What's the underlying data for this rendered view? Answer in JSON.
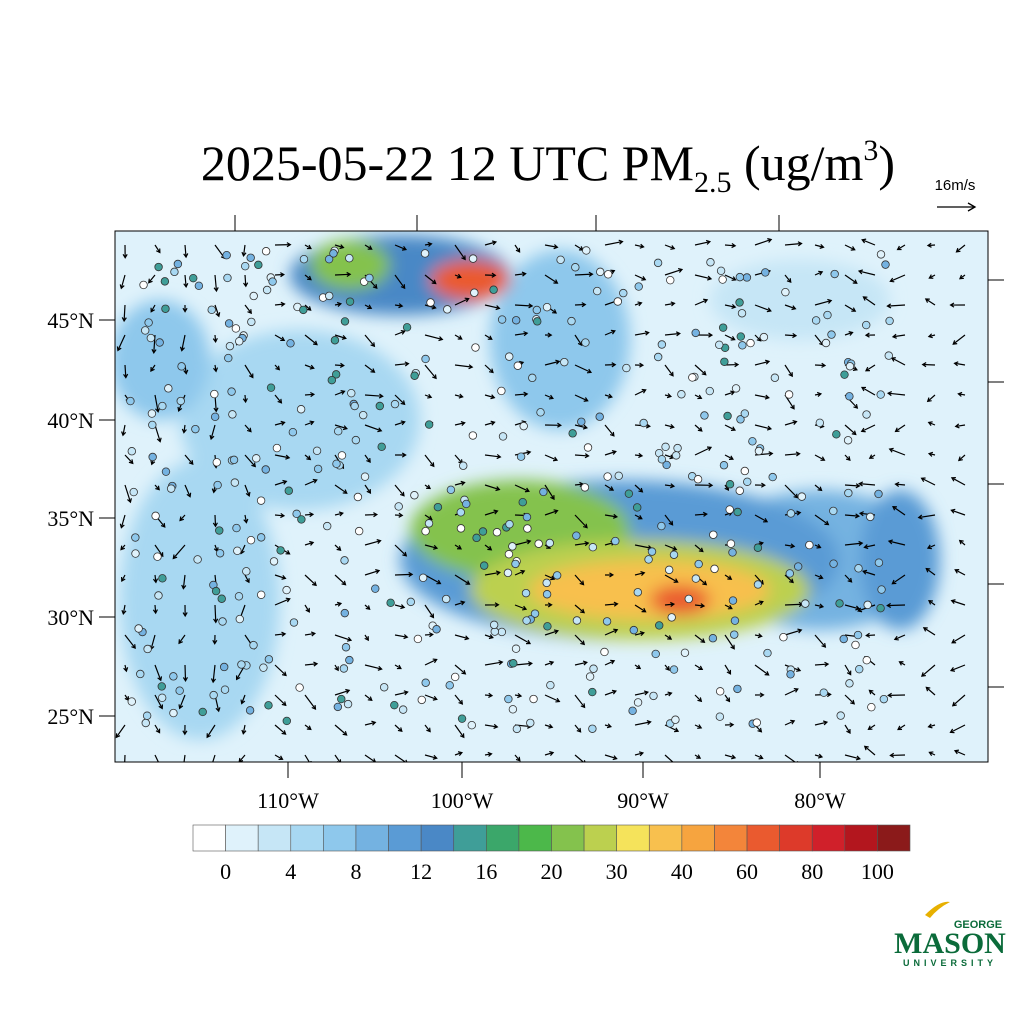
{
  "title": {
    "main": "2025-05-22 12 UTC PM",
    "subscript": "2.5",
    "unit_open": " (ug/m",
    "superscript": "3",
    "unit_close": ")"
  },
  "wind_reference": "16m/s",
  "lat_labels": [
    "45°N",
    "40°N",
    "35°N",
    "30°N",
    "25°N"
  ],
  "lon_labels": [
    "110°W",
    "100°W",
    "90°W",
    "80°W"
  ],
  "colorbar": {
    "colors": [
      "#ffffff",
      "#dff2fb",
      "#c6e6f6",
      "#a8d8f2",
      "#8ec8ec",
      "#74b2e1",
      "#5a9bd5",
      "#4a88c6",
      "#3f9e98",
      "#3ba76a",
      "#4cb84a",
      "#84c24d",
      "#bcd04f",
      "#f5e35b",
      "#f8c04e",
      "#f6a43f",
      "#f3853a",
      "#ea5a2f",
      "#dd3a2a",
      "#d0202a",
      "#b3161e",
      "#8b1a1a"
    ],
    "labels": [
      "0",
      "4",
      "8",
      "12",
      "16",
      "20",
      "30",
      "40",
      "60",
      "80",
      "100"
    ]
  },
  "logo": {
    "line1": "GEORGE",
    "line2": "MASON",
    "line3": "UNIVERSITY"
  }
}
